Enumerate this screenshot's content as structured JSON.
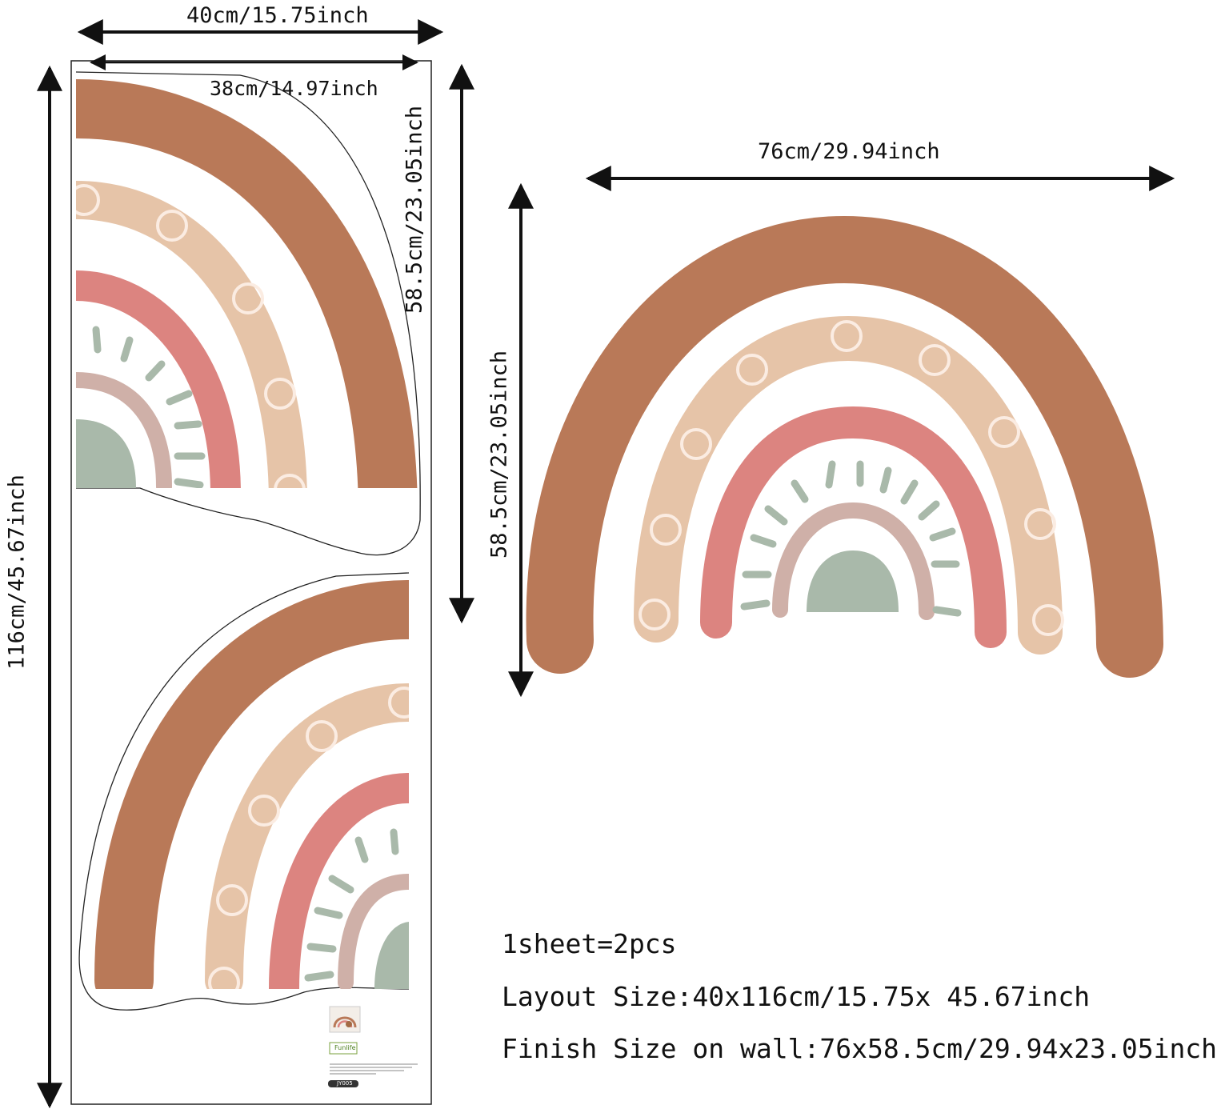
{
  "dimensions": {
    "layout_width": "40cm/15.75inch",
    "sticker_width": "38cm/14.97inch",
    "layout_height": "116cm/45.67inch",
    "sticker_height": "58.5cm/23.05inch",
    "finish_width": "76cm/29.94inch",
    "finish_height": "58.5cm/23.05inch"
  },
  "info": {
    "line1": "1sheet=2pcs",
    "line2": "Layout Size:40x116cm/15.75x 45.67inch",
    "line3": "Finish Size on wall:76x58.5cm/29.94x23.05inch"
  },
  "label": {
    "brand": "Funlife",
    "code": "JY005"
  },
  "colors": {
    "brown": "#b97958",
    "peach": "#e6c4a8",
    "pink": "#dc8480",
    "mauve": "#cfb0a8",
    "sage": "#a9b9aa",
    "ring": "#fbece2",
    "line": "#111111"
  }
}
